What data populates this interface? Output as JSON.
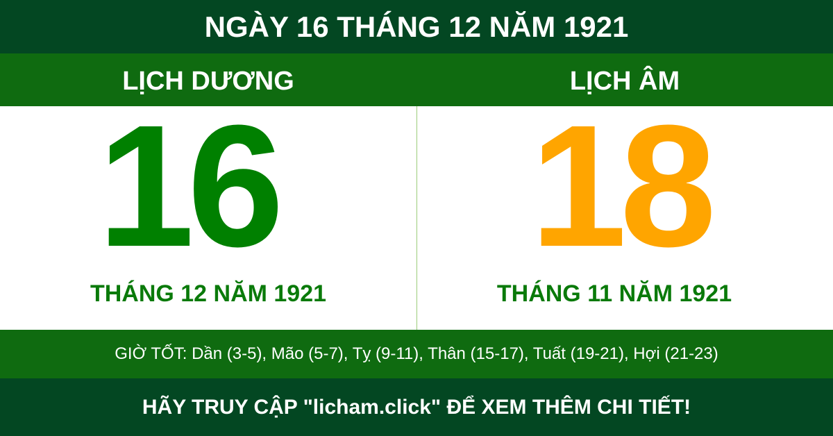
{
  "title": "NGÀY 16 THÁNG 12 NĂM 1921",
  "solar": {
    "label": "LỊCH DƯƠNG",
    "day": "16",
    "month_year": "THÁNG 12 NĂM 1921"
  },
  "lunar": {
    "label": "LỊCH ÂM",
    "day": "18",
    "month_year": "THÁNG 11 NĂM 1921"
  },
  "good_hours": "GIỜ TỐT: Dần (3-5), Mão (5-7), Tỵ (9-11), Thân (15-17), Tuất (19-21), Hợi (21-23)",
  "footer": "HÃY TRUY CẬP \"licham.click\" ĐỂ XEM THÊM CHI TIẾT!",
  "colors": {
    "dark_green": "#034722",
    "band_green": "#0f6b10",
    "solar_day": "#008000",
    "lunar_day": "#ffa500"
  }
}
